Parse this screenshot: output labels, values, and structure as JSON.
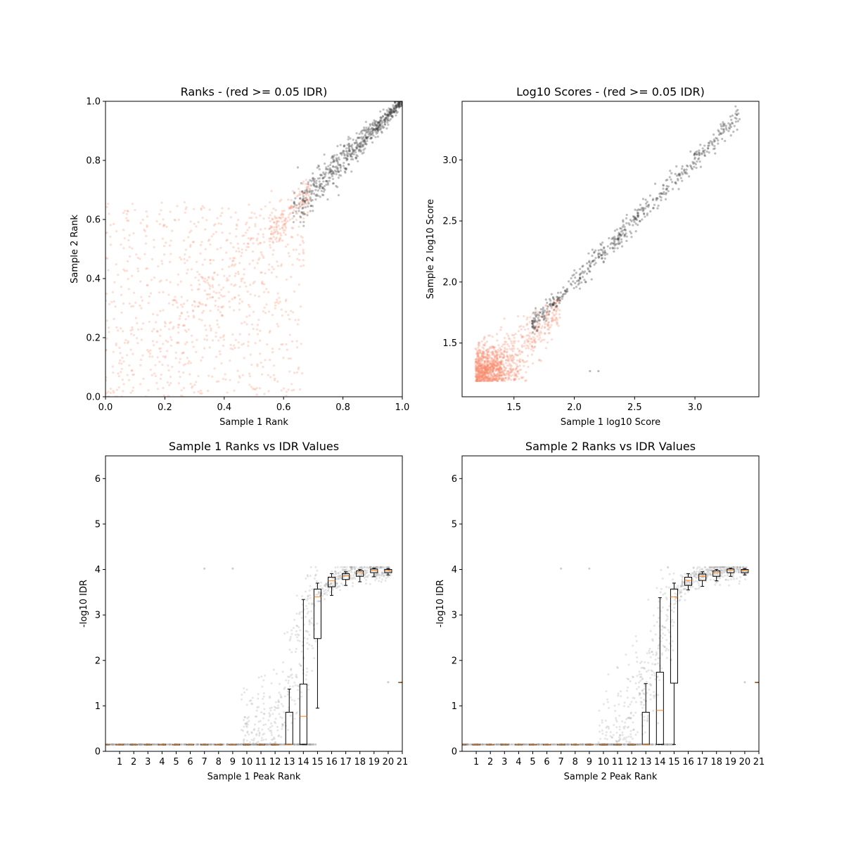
{
  "colors": {
    "above_threshold": "#fa8b6c",
    "below_threshold": "#333333",
    "idr_points": "#9a9a9a",
    "median_line": "#ff7f0e",
    "box_edge": "#000000"
  },
  "chart_data": [
    {
      "type": "scatter",
      "title": "Ranks - (red >= 0.05 IDR)",
      "xlabel": "Sample 1 Rank",
      "ylabel": "Sample 2 Rank",
      "xlim": [
        0.0,
        1.0
      ],
      "ylim": [
        0.0,
        1.0
      ],
      "xticks": [
        "0.0",
        "0.2",
        "0.4",
        "0.6",
        "0.8",
        "1.0"
      ],
      "yticks": [
        "0.0",
        "0.2",
        "0.4",
        "0.6",
        "0.8",
        "1.0"
      ],
      "series": [
        {
          "color_key": "above_threshold",
          "pattern": "diffuse cloud x 0-0.67, y 0-0.68",
          "x_range": [
            0.0,
            0.67
          ],
          "y_range": [
            0.0,
            0.68
          ]
        },
        {
          "color_key": "below_threshold",
          "pattern": "diagonal band x 0.62-1.0",
          "x_range": [
            0.62,
            1.0
          ],
          "y_range": [
            0.63,
            1.0
          ]
        }
      ]
    },
    {
      "type": "scatter",
      "title": "Log10 Scores - (red >= 0.05 IDR)",
      "xlabel": "Sample 1 log10 Score",
      "ylabel": "Sample 2 log10 Score",
      "xlim": [
        1.07,
        3.53
      ],
      "ylim": [
        1.06,
        3.48
      ],
      "xticks": [
        "1.5",
        "2.0",
        "2.5",
        "3.0"
      ],
      "yticks": [
        "1.5",
        "2.0",
        "2.5",
        "3.0"
      ],
      "series": [
        {
          "color_key": "above_threshold",
          "pattern": "dense cluster near 1.2-1.6 with spread",
          "x_range": [
            1.18,
            1.95
          ],
          "y_range": [
            1.19,
            1.85
          ]
        },
        {
          "color_key": "below_threshold",
          "pattern": "diagonal band x 1.65-3.37",
          "x_range": [
            1.65,
            3.37
          ],
          "y_range": [
            1.65,
            3.37
          ]
        }
      ]
    },
    {
      "type": "box",
      "title": "Sample 1 Ranks vs IDR Values",
      "xlabel": "Sample 1 Peak Rank",
      "ylabel": "-log10 IDR",
      "xlim": [
        0,
        21
      ],
      "ylim": [
        0,
        6.5
      ],
      "xticks": [
        "1",
        "2",
        "3",
        "4",
        "5",
        "6",
        "7",
        "8",
        "9",
        "10",
        "11",
        "12",
        "13",
        "14",
        "15",
        "16",
        "17",
        "18",
        "19",
        "20",
        "21"
      ],
      "yticks": [
        "0",
        "1",
        "2",
        "3",
        "4",
        "5",
        "6"
      ],
      "boxes": [
        {
          "pos": 0,
          "q1": 0.15,
          "med": 0.15,
          "q3": 0.15,
          "lo": 0.15,
          "hi": 0.15
        },
        {
          "pos": 1,
          "q1": 0.15,
          "med": 0.15,
          "q3": 0.15,
          "lo": 0.15,
          "hi": 0.15
        },
        {
          "pos": 2,
          "q1": 0.15,
          "med": 0.15,
          "q3": 0.15,
          "lo": 0.15,
          "hi": 0.15
        },
        {
          "pos": 3,
          "q1": 0.15,
          "med": 0.15,
          "q3": 0.15,
          "lo": 0.15,
          "hi": 0.15
        },
        {
          "pos": 4,
          "q1": 0.15,
          "med": 0.15,
          "q3": 0.15,
          "lo": 0.15,
          "hi": 0.15
        },
        {
          "pos": 5,
          "q1": 0.15,
          "med": 0.15,
          "q3": 0.15,
          "lo": 0.15,
          "hi": 0.15
        },
        {
          "pos": 6,
          "q1": 0.15,
          "med": 0.15,
          "q3": 0.15,
          "lo": 0.15,
          "hi": 0.15
        },
        {
          "pos": 7,
          "q1": 0.15,
          "med": 0.15,
          "q3": 0.15,
          "lo": 0.15,
          "hi": 0.15
        },
        {
          "pos": 8,
          "q1": 0.15,
          "med": 0.15,
          "q3": 0.15,
          "lo": 0.15,
          "hi": 0.15
        },
        {
          "pos": 9,
          "q1": 0.15,
          "med": 0.15,
          "q3": 0.15,
          "lo": 0.15,
          "hi": 0.15
        },
        {
          "pos": 10,
          "q1": 0.15,
          "med": 0.15,
          "q3": 0.15,
          "lo": 0.15,
          "hi": 0.15
        },
        {
          "pos": 11,
          "q1": 0.15,
          "med": 0.15,
          "q3": 0.15,
          "lo": 0.15,
          "hi": 0.15
        },
        {
          "pos": 12,
          "q1": 0.15,
          "med": 0.15,
          "q3": 0.15,
          "lo": 0.15,
          "hi": 0.15
        },
        {
          "pos": 13,
          "q1": 0.15,
          "med": 0.15,
          "q3": 0.86,
          "lo": 0.15,
          "hi": 1.37
        },
        {
          "pos": 14,
          "q1": 0.15,
          "med": 0.77,
          "q3": 1.48,
          "lo": 0.15,
          "hi": 3.34
        },
        {
          "pos": 15,
          "q1": 2.48,
          "med": 3.4,
          "q3": 3.57,
          "lo": 0.95,
          "hi": 3.7
        },
        {
          "pos": 16,
          "q1": 3.62,
          "med": 3.75,
          "q3": 3.83,
          "lo": 3.43,
          "hi": 3.91
        },
        {
          "pos": 17,
          "q1": 3.78,
          "med": 3.86,
          "q3": 3.91,
          "lo": 3.65,
          "hi": 3.95
        },
        {
          "pos": 18,
          "q1": 3.85,
          "med": 3.93,
          "q3": 3.97,
          "lo": 3.73,
          "hi": 4.0
        },
        {
          "pos": 19,
          "q1": 3.93,
          "med": 3.98,
          "q3": 4.01,
          "lo": 3.84,
          "hi": 4.03
        },
        {
          "pos": 20,
          "q1": 3.93,
          "med": 3.97,
          "q3": 4.0,
          "lo": 3.88,
          "hi": 4.02
        },
        {
          "pos": 21,
          "q1": 1.52,
          "med": 1.52,
          "q3": 1.52,
          "lo": 1.52,
          "hi": 1.52
        }
      ],
      "points_pattern": "grey scatter rising from ~0.7 at rank 10 to ~4.0 at rank 20"
    },
    {
      "type": "box",
      "title": "Sample 2 Ranks vs IDR Values",
      "xlabel": "Sample 2 Peak Rank",
      "ylabel": "-log10 IDR",
      "xlim": [
        0,
        21
      ],
      "ylim": [
        0,
        6.5
      ],
      "xticks": [
        "1",
        "2",
        "3",
        "4",
        "5",
        "6",
        "7",
        "8",
        "9",
        "10",
        "11",
        "12",
        "13",
        "14",
        "15",
        "16",
        "17",
        "18",
        "19",
        "20",
        "21"
      ],
      "yticks": [
        "0",
        "1",
        "2",
        "3",
        "4",
        "5",
        "6"
      ],
      "boxes": [
        {
          "pos": 0,
          "q1": 0.15,
          "med": 0.15,
          "q3": 0.15,
          "lo": 0.15,
          "hi": 0.15
        },
        {
          "pos": 1,
          "q1": 0.15,
          "med": 0.15,
          "q3": 0.15,
          "lo": 0.15,
          "hi": 0.15
        },
        {
          "pos": 2,
          "q1": 0.15,
          "med": 0.15,
          "q3": 0.15,
          "lo": 0.15,
          "hi": 0.15
        },
        {
          "pos": 3,
          "q1": 0.15,
          "med": 0.15,
          "q3": 0.15,
          "lo": 0.15,
          "hi": 0.15
        },
        {
          "pos": 4,
          "q1": 0.15,
          "med": 0.15,
          "q3": 0.15,
          "lo": 0.15,
          "hi": 0.15
        },
        {
          "pos": 5,
          "q1": 0.15,
          "med": 0.15,
          "q3": 0.15,
          "lo": 0.15,
          "hi": 0.15
        },
        {
          "pos": 6,
          "q1": 0.15,
          "med": 0.15,
          "q3": 0.15,
          "lo": 0.15,
          "hi": 0.15
        },
        {
          "pos": 7,
          "q1": 0.15,
          "med": 0.15,
          "q3": 0.15,
          "lo": 0.15,
          "hi": 0.15
        },
        {
          "pos": 8,
          "q1": 0.15,
          "med": 0.15,
          "q3": 0.15,
          "lo": 0.15,
          "hi": 0.15
        },
        {
          "pos": 9,
          "q1": 0.15,
          "med": 0.15,
          "q3": 0.15,
          "lo": 0.15,
          "hi": 0.15
        },
        {
          "pos": 10,
          "q1": 0.15,
          "med": 0.15,
          "q3": 0.15,
          "lo": 0.15,
          "hi": 0.15
        },
        {
          "pos": 11,
          "q1": 0.15,
          "med": 0.15,
          "q3": 0.15,
          "lo": 0.15,
          "hi": 0.15
        },
        {
          "pos": 12,
          "q1": 0.15,
          "med": 0.15,
          "q3": 0.15,
          "lo": 0.15,
          "hi": 0.15
        },
        {
          "pos": 13,
          "q1": 0.15,
          "med": 0.15,
          "q3": 0.86,
          "lo": 0.15,
          "hi": 1.49
        },
        {
          "pos": 14,
          "q1": 0.15,
          "med": 0.9,
          "q3": 1.74,
          "lo": 0.15,
          "hi": 3.38
        },
        {
          "pos": 15,
          "q1": 1.5,
          "med": 3.4,
          "q3": 3.57,
          "lo": 0.15,
          "hi": 3.7
        },
        {
          "pos": 16,
          "q1": 3.65,
          "med": 3.76,
          "q3": 3.83,
          "lo": 3.55,
          "hi": 3.91
        },
        {
          "pos": 17,
          "q1": 3.76,
          "med": 3.85,
          "q3": 3.9,
          "lo": 3.63,
          "hi": 3.95
        },
        {
          "pos": 18,
          "q1": 3.85,
          "med": 3.93,
          "q3": 3.97,
          "lo": 3.75,
          "hi": 4.0
        },
        {
          "pos": 19,
          "q1": 3.93,
          "med": 3.98,
          "q3": 4.01,
          "lo": 3.85,
          "hi": 4.03
        },
        {
          "pos": 20,
          "q1": 3.93,
          "med": 3.97,
          "q3": 4.0,
          "lo": 3.88,
          "hi": 4.02
        },
        {
          "pos": 21,
          "q1": 1.52,
          "med": 1.52,
          "q3": 1.52,
          "lo": 1.52,
          "hi": 1.52
        }
      ],
      "points_pattern": "grey scatter rising from ~0.7 at rank 10 to ~4.0 at rank 20"
    }
  ]
}
